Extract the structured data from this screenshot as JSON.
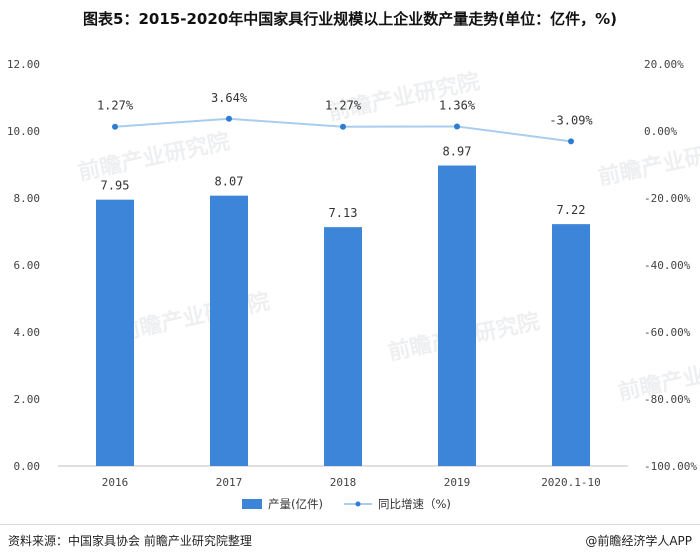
{
  "title": "图表5：2015-2020年中国家具行业规模以上企业数产量走势(单位：亿件，%)",
  "source": "资料来源：中国家具协会 前瞻产业研究院整理",
  "credit": "@前瞻经济学人APP",
  "watermark": "前瞻产业研究院",
  "chart_data": {
    "type": "bar",
    "categories": [
      "2016",
      "2017",
      "2018",
      "2019",
      "2020.1-10"
    ],
    "series": [
      {
        "name": "产量(亿件)",
        "type": "bar",
        "axis": "left",
        "values": [
          7.95,
          8.07,
          7.13,
          8.97,
          7.22
        ],
        "labels": [
          "7.95",
          "8.07",
          "7.13",
          "8.97",
          "7.22"
        ],
        "color": "#3d85d8"
      },
      {
        "name": "同比增速（%)",
        "type": "line",
        "axis": "right",
        "values": [
          1.27,
          3.64,
          1.27,
          1.36,
          -3.09
        ],
        "labels": [
          "1.27%",
          "3.64%",
          "1.27%",
          "1.36%",
          "-3.09%"
        ],
        "color": "#a9cdef",
        "marker_color": "#2f7cd3"
      }
    ],
    "y_left": {
      "min": 0,
      "max": 12,
      "ticks": [
        "0.00",
        "2.00",
        "4.00",
        "6.00",
        "8.00",
        "10.00",
        "12.00"
      ]
    },
    "y_right": {
      "min": -100,
      "max": 20,
      "ticks": [
        "-100.00%",
        "-80.00%",
        "-60.00%",
        "-40.00%",
        "-20.00%",
        "0.00%",
        "20.00%"
      ]
    },
    "legend_position": "bottom",
    "grid": false
  }
}
